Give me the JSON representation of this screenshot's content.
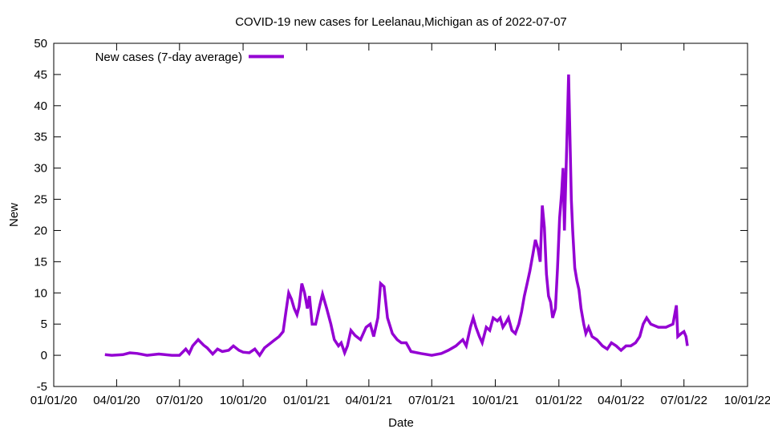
{
  "chart_data": {
    "type": "line",
    "title": "COVID-19 new cases for Leelanau,Michigan as of 2022-07-07",
    "xlabel": "Date",
    "ylabel": "New",
    "ylim": [
      -5,
      50
    ],
    "yticks": [
      -5,
      0,
      5,
      10,
      15,
      20,
      25,
      30,
      35,
      40,
      45,
      50
    ],
    "xlim": [
      "2020-01-01",
      "2022-10-01"
    ],
    "xticks": [
      {
        "date": "2020-01-01",
        "label": "01/01/20"
      },
      {
        "date": "2020-04-01",
        "label": "04/01/20"
      },
      {
        "date": "2020-07-01",
        "label": "07/01/20"
      },
      {
        "date": "2020-10-01",
        "label": "10/01/20"
      },
      {
        "date": "2021-01-01",
        "label": "01/01/21"
      },
      {
        "date": "2021-04-01",
        "label": "04/01/21"
      },
      {
        "date": "2021-07-01",
        "label": "07/01/21"
      },
      {
        "date": "2021-10-01",
        "label": "10/01/21"
      },
      {
        "date": "2022-01-01",
        "label": "01/01/22"
      },
      {
        "date": "2022-04-01",
        "label": "04/01/22"
      },
      {
        "date": "2022-07-01",
        "label": "07/01/22"
      },
      {
        "date": "2022-10-01",
        "label": "10/01/22"
      }
    ],
    "grid": false,
    "legend_position": "top-left",
    "series": [
      {
        "name": "New cases (7-day average)",
        "color": "#9400d3",
        "points": [
          [
            "2020-03-15",
            0.1
          ],
          [
            "2020-03-25",
            0.0
          ],
          [
            "2020-04-10",
            0.1
          ],
          [
            "2020-04-20",
            0.4
          ],
          [
            "2020-05-01",
            0.3
          ],
          [
            "2020-05-15",
            0.0
          ],
          [
            "2020-06-01",
            0.2
          ],
          [
            "2020-06-20",
            0.0
          ],
          [
            "2020-07-01",
            0.0
          ],
          [
            "2020-07-10",
            1.0
          ],
          [
            "2020-07-15",
            0.3
          ],
          [
            "2020-07-20",
            1.5
          ],
          [
            "2020-07-28",
            2.5
          ],
          [
            "2020-08-05",
            1.6
          ],
          [
            "2020-08-10",
            1.2
          ],
          [
            "2020-08-18",
            0.2
          ],
          [
            "2020-08-25",
            1.0
          ],
          [
            "2020-09-01",
            0.6
          ],
          [
            "2020-09-10",
            0.8
          ],
          [
            "2020-09-17",
            1.5
          ],
          [
            "2020-09-25",
            0.8
          ],
          [
            "2020-10-01",
            0.5
          ],
          [
            "2020-10-10",
            0.4
          ],
          [
            "2020-10-18",
            1.0
          ],
          [
            "2020-10-25",
            0.0
          ],
          [
            "2020-11-01",
            1.2
          ],
          [
            "2020-11-08",
            1.8
          ],
          [
            "2020-11-15",
            2.4
          ],
          [
            "2020-11-22",
            3.0
          ],
          [
            "2020-11-28",
            3.8
          ],
          [
            "2020-12-02",
            7.0
          ],
          [
            "2020-12-06",
            10.0
          ],
          [
            "2020-12-10",
            9.0
          ],
          [
            "2020-12-14",
            7.5
          ],
          [
            "2020-12-18",
            6.5
          ],
          [
            "2020-12-21",
            7.8
          ],
          [
            "2020-12-25",
            11.5
          ],
          [
            "2020-12-29",
            10.0
          ],
          [
            "2021-01-02",
            7.5
          ],
          [
            "2021-01-05",
            9.5
          ],
          [
            "2021-01-09",
            5.0
          ],
          [
            "2021-01-14",
            5.0
          ],
          [
            "2021-01-20",
            8.0
          ],
          [
            "2021-01-24",
            9.8
          ],
          [
            "2021-01-30",
            7.5
          ],
          [
            "2021-02-05",
            5.0
          ],
          [
            "2021-02-10",
            2.5
          ],
          [
            "2021-02-16",
            1.5
          ],
          [
            "2021-02-20",
            2.0
          ],
          [
            "2021-02-25",
            0.4
          ],
          [
            "2021-03-01",
            1.5
          ],
          [
            "2021-03-06",
            4.0
          ],
          [
            "2021-03-12",
            3.2
          ],
          [
            "2021-03-20",
            2.5
          ],
          [
            "2021-03-28",
            4.5
          ],
          [
            "2021-04-03",
            5.0
          ],
          [
            "2021-04-08",
            3.0
          ],
          [
            "2021-04-14",
            6.0
          ],
          [
            "2021-04-18",
            11.5
          ],
          [
            "2021-04-23",
            11.0
          ],
          [
            "2021-04-28",
            6.0
          ],
          [
            "2021-05-05",
            3.5
          ],
          [
            "2021-05-12",
            2.5
          ],
          [
            "2021-05-18",
            2.0
          ],
          [
            "2021-05-25",
            2.0
          ],
          [
            "2021-06-01",
            0.6
          ],
          [
            "2021-06-15",
            0.3
          ],
          [
            "2021-07-01",
            0.0
          ],
          [
            "2021-07-15",
            0.3
          ],
          [
            "2021-07-25",
            0.8
          ],
          [
            "2021-08-05",
            1.5
          ],
          [
            "2021-08-15",
            2.5
          ],
          [
            "2021-08-20",
            1.5
          ],
          [
            "2021-08-26",
            4.5
          ],
          [
            "2021-08-30",
            6.0
          ],
          [
            "2021-09-03",
            4.5
          ],
          [
            "2021-09-08",
            3.0
          ],
          [
            "2021-09-12",
            2.0
          ],
          [
            "2021-09-18",
            4.5
          ],
          [
            "2021-09-23",
            4.0
          ],
          [
            "2021-09-28",
            6.0
          ],
          [
            "2021-10-04",
            5.5
          ],
          [
            "2021-10-08",
            6.0
          ],
          [
            "2021-10-12",
            4.5
          ],
          [
            "2021-10-16",
            5.2
          ],
          [
            "2021-10-20",
            6.0
          ],
          [
            "2021-10-25",
            4.0
          ],
          [
            "2021-10-30",
            3.5
          ],
          [
            "2021-11-04",
            5.0
          ],
          [
            "2021-11-08",
            7.0
          ],
          [
            "2021-11-12",
            9.5
          ],
          [
            "2021-11-16",
            11.5
          ],
          [
            "2021-11-20",
            13.5
          ],
          [
            "2021-11-24",
            16.0
          ],
          [
            "2021-11-28",
            18.5
          ],
          [
            "2021-12-02",
            17.0
          ],
          [
            "2021-12-05",
            15.0
          ],
          [
            "2021-12-08",
            24.0
          ],
          [
            "2021-12-11",
            20.5
          ],
          [
            "2021-12-14",
            13.0
          ],
          [
            "2021-12-17",
            9.5
          ],
          [
            "2021-12-20",
            8.5
          ],
          [
            "2021-12-23",
            6.0
          ],
          [
            "2021-12-27",
            7.5
          ],
          [
            "2021-12-30",
            14.0
          ],
          [
            "2022-01-02",
            22.0
          ],
          [
            "2022-01-05",
            26.0
          ],
          [
            "2022-01-07",
            30.0
          ],
          [
            "2022-01-09",
            20.0
          ],
          [
            "2022-01-11",
            28.0
          ],
          [
            "2022-01-13",
            36.0
          ],
          [
            "2022-01-15",
            45.0
          ],
          [
            "2022-01-17",
            35.0
          ],
          [
            "2022-01-19",
            25.0
          ],
          [
            "2022-01-21",
            20.0
          ],
          [
            "2022-01-24",
            14.0
          ],
          [
            "2022-01-27",
            12.0
          ],
          [
            "2022-01-30",
            10.5
          ],
          [
            "2022-02-02",
            7.5
          ],
          [
            "2022-02-06",
            5.0
          ],
          [
            "2022-02-09",
            3.5
          ],
          [
            "2022-02-13",
            4.5
          ],
          [
            "2022-02-18",
            3.0
          ],
          [
            "2022-02-25",
            2.5
          ],
          [
            "2022-03-05",
            1.5
          ],
          [
            "2022-03-12",
            1.0
          ],
          [
            "2022-03-18",
            2.0
          ],
          [
            "2022-03-25",
            1.5
          ],
          [
            "2022-04-01",
            0.8
          ],
          [
            "2022-04-08",
            1.5
          ],
          [
            "2022-04-15",
            1.5
          ],
          [
            "2022-04-22",
            2.0
          ],
          [
            "2022-04-28",
            3.0
          ],
          [
            "2022-05-03",
            5.0
          ],
          [
            "2022-05-08",
            6.0
          ],
          [
            "2022-05-14",
            5.0
          ],
          [
            "2022-05-25",
            4.5
          ],
          [
            "2022-06-05",
            4.5
          ],
          [
            "2022-06-15",
            5.0
          ],
          [
            "2022-06-20",
            8.0
          ],
          [
            "2022-06-22",
            3.0
          ],
          [
            "2022-06-27",
            3.5
          ],
          [
            "2022-07-01",
            3.8
          ],
          [
            "2022-07-04",
            3.0
          ],
          [
            "2022-07-06",
            1.5
          ]
        ]
      }
    ]
  }
}
